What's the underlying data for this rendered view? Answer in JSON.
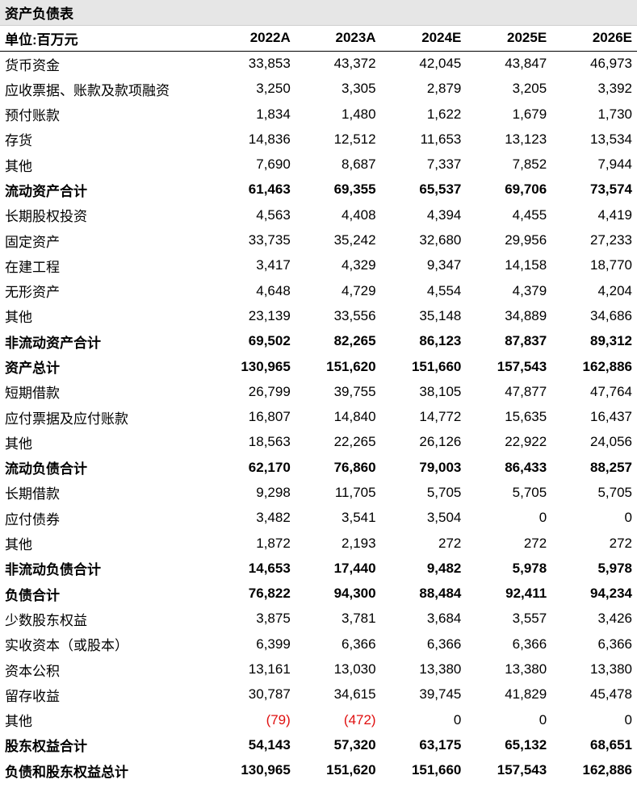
{
  "title": "资产负债表",
  "header": {
    "unit_label": "单位:百万元",
    "columns": [
      "2022A",
      "2023A",
      "2024E",
      "2025E",
      "2026E"
    ]
  },
  "colors": {
    "negative": "#e01010",
    "title_bg": "#e6e6e6"
  },
  "rows": [
    {
      "label": "货币资金",
      "bold": false,
      "values": [
        "33,853",
        "43,372",
        "42,045",
        "43,847",
        "46,973"
      ]
    },
    {
      "label": "应收票据、账款及款项融资",
      "bold": false,
      "values": [
        "3,250",
        "3,305",
        "2,879",
        "3,205",
        "3,392"
      ]
    },
    {
      "label": "预付账款",
      "bold": false,
      "values": [
        "1,834",
        "1,480",
        "1,622",
        "1,679",
        "1,730"
      ]
    },
    {
      "label": "存货",
      "bold": false,
      "values": [
        "14,836",
        "12,512",
        "11,653",
        "13,123",
        "13,534"
      ]
    },
    {
      "label": "其他",
      "bold": false,
      "values": [
        "7,690",
        "8,687",
        "7,337",
        "7,852",
        "7,944"
      ]
    },
    {
      "label": "流动资产合计",
      "bold": true,
      "values": [
        "61,463",
        "69,355",
        "65,537",
        "69,706",
        "73,574"
      ]
    },
    {
      "label": "长期股权投资",
      "bold": false,
      "values": [
        "4,563",
        "4,408",
        "4,394",
        "4,455",
        "4,419"
      ]
    },
    {
      "label": "固定资产",
      "bold": false,
      "values": [
        "33,735",
        "35,242",
        "32,680",
        "29,956",
        "27,233"
      ]
    },
    {
      "label": "在建工程",
      "bold": false,
      "values": [
        "3,417",
        "4,329",
        "9,347",
        "14,158",
        "18,770"
      ]
    },
    {
      "label": "无形资产",
      "bold": false,
      "values": [
        "4,648",
        "4,729",
        "4,554",
        "4,379",
        "4,204"
      ]
    },
    {
      "label": "其他",
      "bold": false,
      "values": [
        "23,139",
        "33,556",
        "35,148",
        "34,889",
        "34,686"
      ]
    },
    {
      "label": "非流动资产合计",
      "bold": true,
      "values": [
        "69,502",
        "82,265",
        "86,123",
        "87,837",
        "89,312"
      ]
    },
    {
      "label": "资产总计",
      "bold": true,
      "values": [
        "130,965",
        "151,620",
        "151,660",
        "157,543",
        "162,886"
      ]
    },
    {
      "label": "短期借款",
      "bold": false,
      "values": [
        "26,799",
        "39,755",
        "38,105",
        "47,877",
        "47,764"
      ]
    },
    {
      "label": "应付票据及应付账款",
      "bold": false,
      "values": [
        "16,807",
        "14,840",
        "14,772",
        "15,635",
        "16,437"
      ]
    },
    {
      "label": "其他",
      "bold": false,
      "values": [
        "18,563",
        "22,265",
        "26,126",
        "22,922",
        "24,056"
      ]
    },
    {
      "label": "流动负债合计",
      "bold": true,
      "values": [
        "62,170",
        "76,860",
        "79,003",
        "86,433",
        "88,257"
      ]
    },
    {
      "label": "长期借款",
      "bold": false,
      "values": [
        "9,298",
        "11,705",
        "5,705",
        "5,705",
        "5,705"
      ]
    },
    {
      "label": "应付债券",
      "bold": false,
      "values": [
        "3,482",
        "3,541",
        "3,504",
        "0",
        "0"
      ]
    },
    {
      "label": "其他",
      "bold": false,
      "values": [
        "1,872",
        "2,193",
        "272",
        "272",
        "272"
      ]
    },
    {
      "label": "非流动负债合计",
      "bold": true,
      "values": [
        "14,653",
        "17,440",
        "9,482",
        "5,978",
        "5,978"
      ]
    },
    {
      "label": "负债合计",
      "bold": true,
      "values": [
        "76,822",
        "94,300",
        "88,484",
        "92,411",
        "94,234"
      ]
    },
    {
      "label": "少数股东权益",
      "bold": false,
      "values": [
        "3,875",
        "3,781",
        "3,684",
        "3,557",
        "3,426"
      ]
    },
    {
      "label": "实收资本（或股本）",
      "bold": false,
      "values": [
        "6,399",
        "6,366",
        "6,366",
        "6,366",
        "6,366"
      ]
    },
    {
      "label": "资本公积",
      "bold": false,
      "values": [
        "13,161",
        "13,030",
        "13,380",
        "13,380",
        "13,380"
      ]
    },
    {
      "label": "留存收益",
      "bold": false,
      "values": [
        "30,787",
        "34,615",
        "39,745",
        "41,829",
        "45,478"
      ]
    },
    {
      "label": "其他",
      "bold": false,
      "values": [
        "(79)",
        "(472)",
        "0",
        "0",
        "0"
      ]
    },
    {
      "label": "股东权益合计",
      "bold": true,
      "values": [
        "54,143",
        "57,320",
        "63,175",
        "65,132",
        "68,651"
      ]
    },
    {
      "label": "负债和股东权益总计",
      "bold": true,
      "values": [
        "130,965",
        "151,620",
        "151,660",
        "157,543",
        "162,886"
      ]
    }
  ]
}
